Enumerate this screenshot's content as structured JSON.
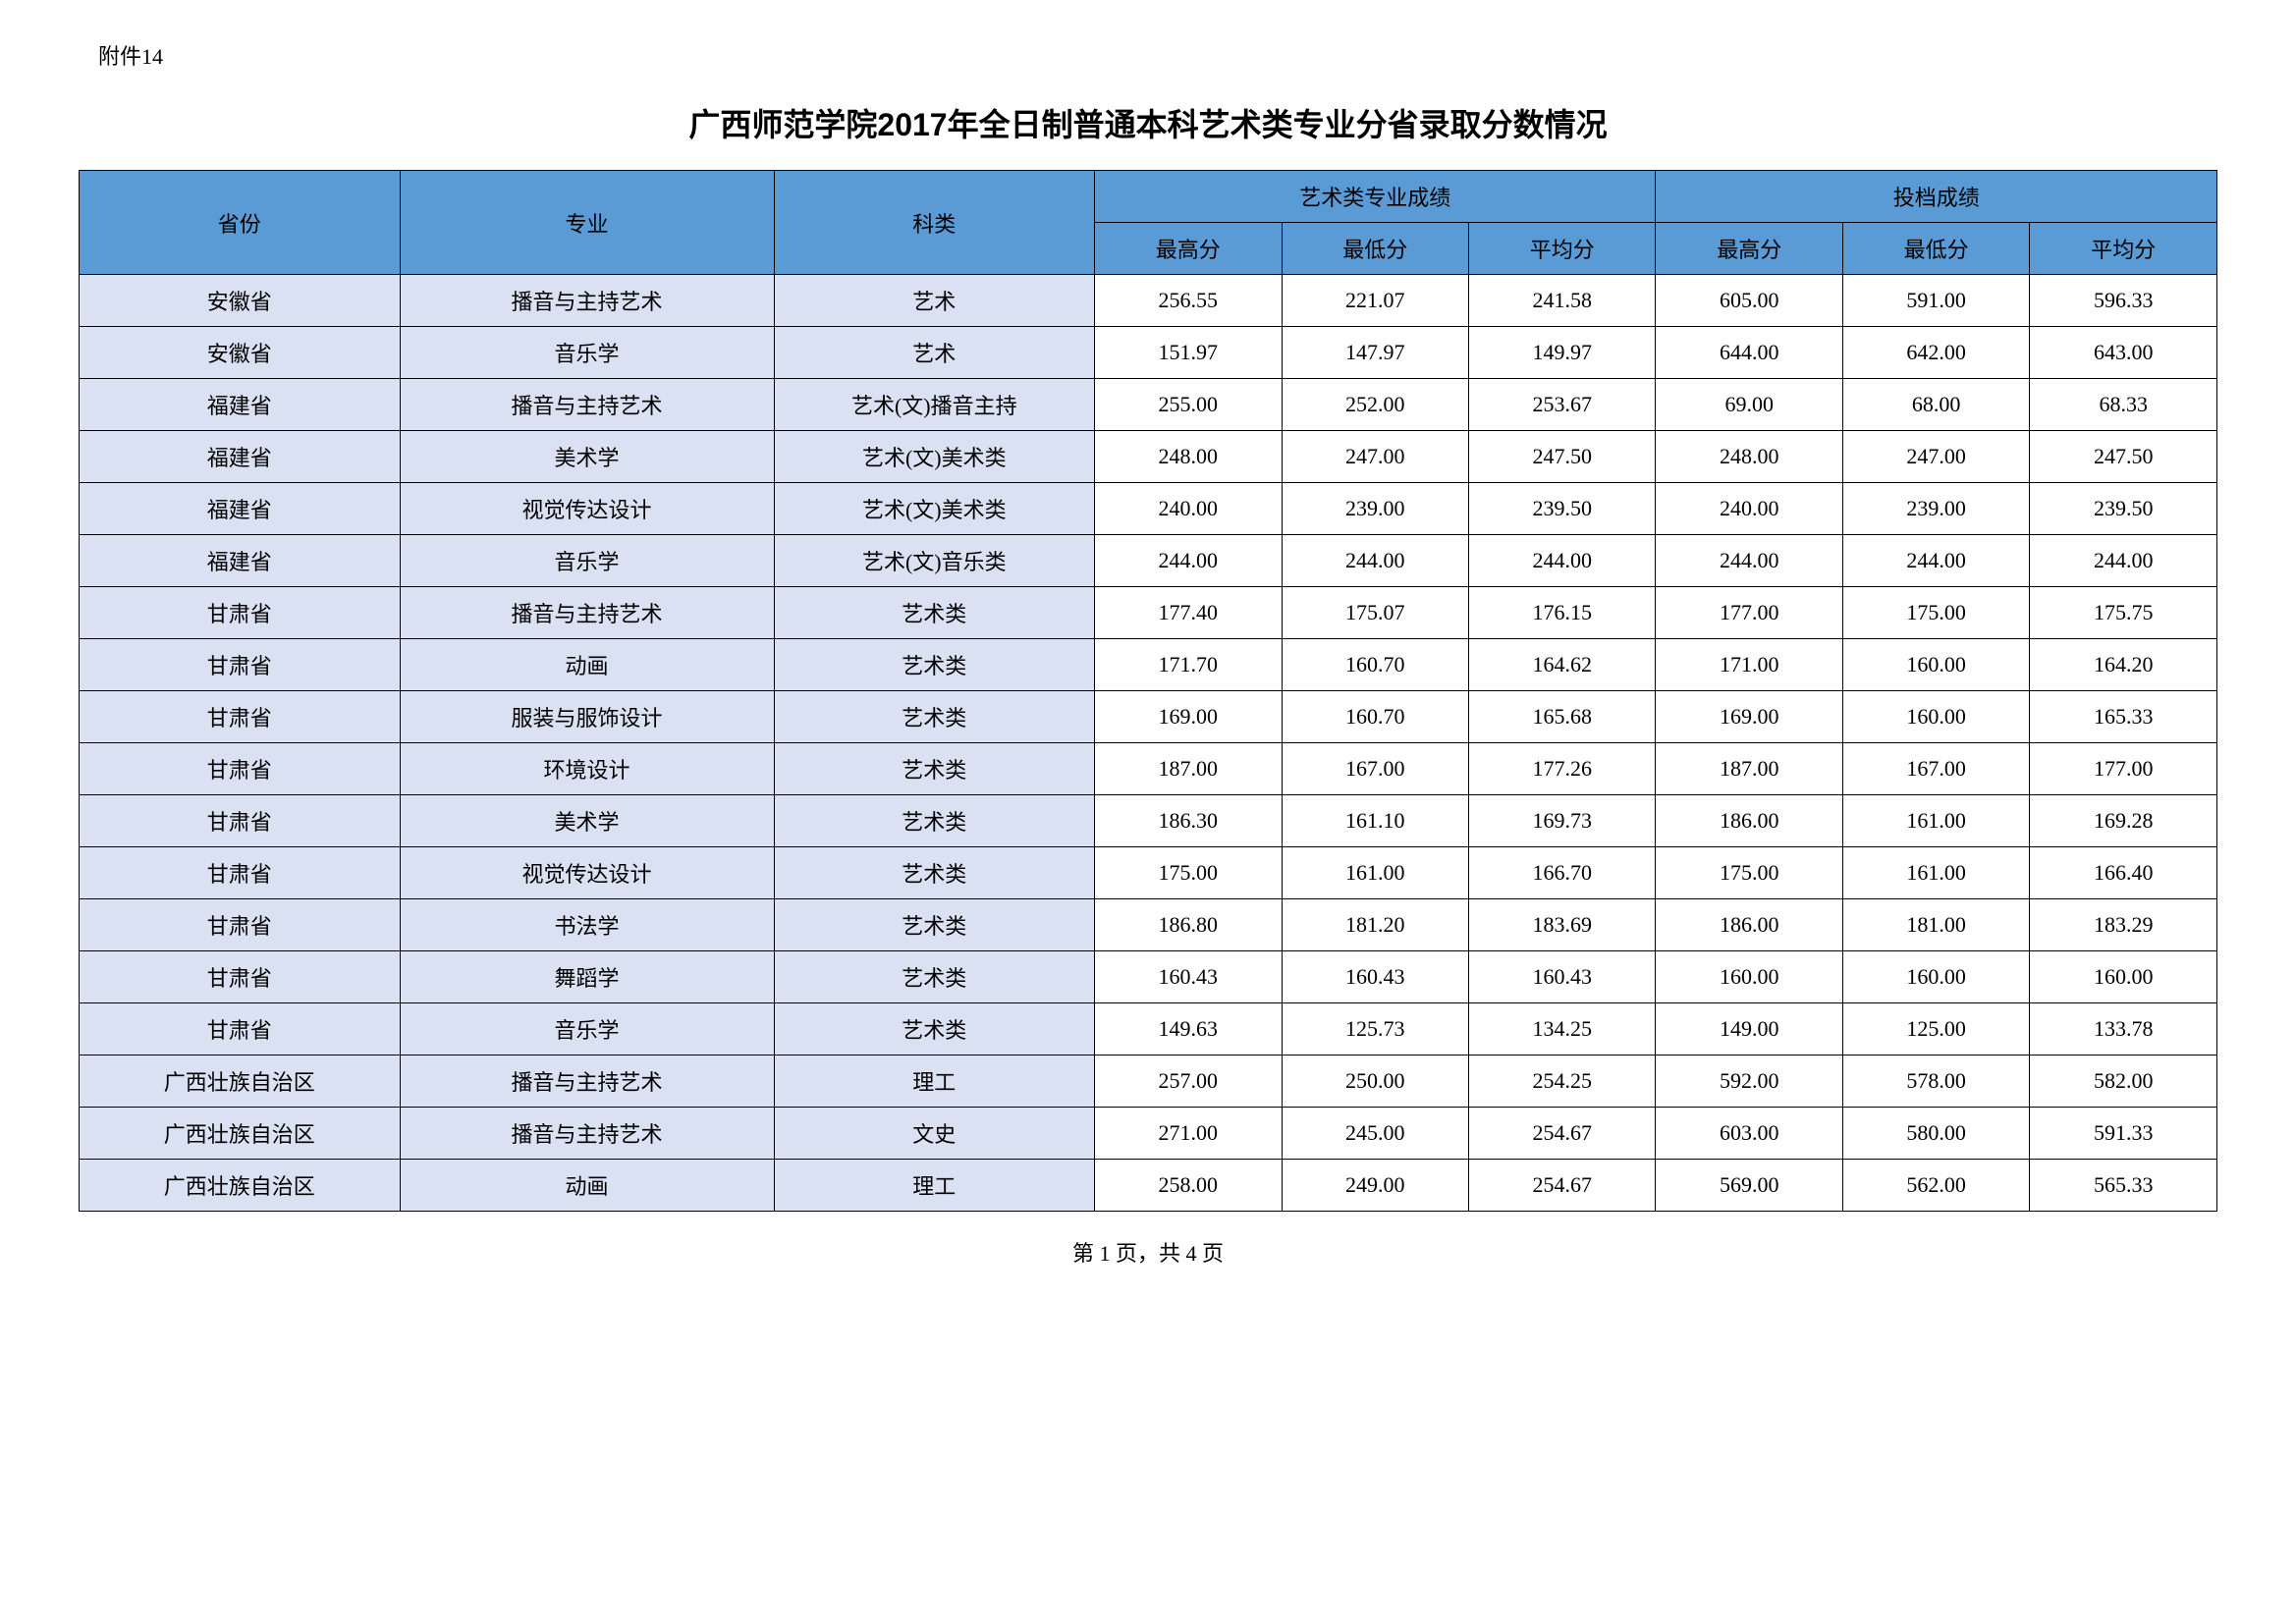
{
  "attachment_label": "附件14",
  "title": "广西师范学院2017年全日制普通本科艺术类专业分省录取分数情况",
  "headers": {
    "province": "省份",
    "major": "专业",
    "category": "科类",
    "art_score_group": "艺术类专业成绩",
    "admission_score_group": "投档成绩",
    "max": "最高分",
    "min": "最低分",
    "avg": "平均分"
  },
  "columns_light": [
    "province",
    "major",
    "category"
  ],
  "rows": [
    {
      "province": "安徽省",
      "major": "播音与主持艺术",
      "category": "艺术",
      "art_max": "256.55",
      "art_min": "221.07",
      "art_avg": "241.58",
      "adm_max": "605.00",
      "adm_min": "591.00",
      "adm_avg": "596.33"
    },
    {
      "province": "安徽省",
      "major": "音乐学",
      "category": "艺术",
      "art_max": "151.97",
      "art_min": "147.97",
      "art_avg": "149.97",
      "adm_max": "644.00",
      "adm_min": "642.00",
      "adm_avg": "643.00"
    },
    {
      "province": "福建省",
      "major": "播音与主持艺术",
      "category": "艺术(文)播音主持",
      "art_max": "255.00",
      "art_min": "252.00",
      "art_avg": "253.67",
      "adm_max": "69.00",
      "adm_min": "68.00",
      "adm_avg": "68.33"
    },
    {
      "province": "福建省",
      "major": "美术学",
      "category": "艺术(文)美术类",
      "art_max": "248.00",
      "art_min": "247.00",
      "art_avg": "247.50",
      "adm_max": "248.00",
      "adm_min": "247.00",
      "adm_avg": "247.50"
    },
    {
      "province": "福建省",
      "major": "视觉传达设计",
      "category": "艺术(文)美术类",
      "art_max": "240.00",
      "art_min": "239.00",
      "art_avg": "239.50",
      "adm_max": "240.00",
      "adm_min": "239.00",
      "adm_avg": "239.50"
    },
    {
      "province": "福建省",
      "major": "音乐学",
      "category": "艺术(文)音乐类",
      "art_max": "244.00",
      "art_min": "244.00",
      "art_avg": "244.00",
      "adm_max": "244.00",
      "adm_min": "244.00",
      "adm_avg": "244.00"
    },
    {
      "province": "甘肃省",
      "major": "播音与主持艺术",
      "category": "艺术类",
      "art_max": "177.40",
      "art_min": "175.07",
      "art_avg": "176.15",
      "adm_max": "177.00",
      "adm_min": "175.00",
      "adm_avg": "175.75"
    },
    {
      "province": "甘肃省",
      "major": "动画",
      "category": "艺术类",
      "art_max": "171.70",
      "art_min": "160.70",
      "art_avg": "164.62",
      "adm_max": "171.00",
      "adm_min": "160.00",
      "adm_avg": "164.20"
    },
    {
      "province": "甘肃省",
      "major": "服装与服饰设计",
      "category": "艺术类",
      "art_max": "169.00",
      "art_min": "160.70",
      "art_avg": "165.68",
      "adm_max": "169.00",
      "adm_min": "160.00",
      "adm_avg": "165.33"
    },
    {
      "province": "甘肃省",
      "major": "环境设计",
      "category": "艺术类",
      "art_max": "187.00",
      "art_min": "167.00",
      "art_avg": "177.26",
      "adm_max": "187.00",
      "adm_min": "167.00",
      "adm_avg": "177.00"
    },
    {
      "province": "甘肃省",
      "major": "美术学",
      "category": "艺术类",
      "art_max": "186.30",
      "art_min": "161.10",
      "art_avg": "169.73",
      "adm_max": "186.00",
      "adm_min": "161.00",
      "adm_avg": "169.28"
    },
    {
      "province": "甘肃省",
      "major": "视觉传达设计",
      "category": "艺术类",
      "art_max": "175.00",
      "art_min": "161.00",
      "art_avg": "166.70",
      "adm_max": "175.00",
      "adm_min": "161.00",
      "adm_avg": "166.40"
    },
    {
      "province": "甘肃省",
      "major": "书法学",
      "category": "艺术类",
      "art_max": "186.80",
      "art_min": "181.20",
      "art_avg": "183.69",
      "adm_max": "186.00",
      "adm_min": "181.00",
      "adm_avg": "183.29"
    },
    {
      "province": "甘肃省",
      "major": "舞蹈学",
      "category": "艺术类",
      "art_max": "160.43",
      "art_min": "160.43",
      "art_avg": "160.43",
      "adm_max": "160.00",
      "adm_min": "160.00",
      "adm_avg": "160.00"
    },
    {
      "province": "甘肃省",
      "major": "音乐学",
      "category": "艺术类",
      "art_max": "149.63",
      "art_min": "125.73",
      "art_avg": "134.25",
      "adm_max": "149.00",
      "adm_min": "125.00",
      "adm_avg": "133.78"
    },
    {
      "province": "广西壮族自治区",
      "major": "播音与主持艺术",
      "category": "理工",
      "art_max": "257.00",
      "art_min": "250.00",
      "art_avg": "254.25",
      "adm_max": "592.00",
      "adm_min": "578.00",
      "adm_avg": "582.00"
    },
    {
      "province": "广西壮族自治区",
      "major": "播音与主持艺术",
      "category": "文史",
      "art_max": "271.00",
      "art_min": "245.00",
      "art_avg": "254.67",
      "adm_max": "603.00",
      "adm_min": "580.00",
      "adm_avg": "591.33"
    },
    {
      "province": "广西壮族自治区",
      "major": "动画",
      "category": "理工",
      "art_max": "258.00",
      "art_min": "249.00",
      "art_avg": "254.67",
      "adm_max": "569.00",
      "adm_min": "562.00",
      "adm_avg": "565.33"
    }
  ],
  "footer": "第 1 页，共 4 页",
  "styling": {
    "header_bg": "#5b9bd5",
    "light_cell_bg": "#d9e1f2",
    "border_color": "#000000",
    "body_bg": "#ffffff",
    "title_fontsize": 32,
    "cell_fontsize": 22
  }
}
